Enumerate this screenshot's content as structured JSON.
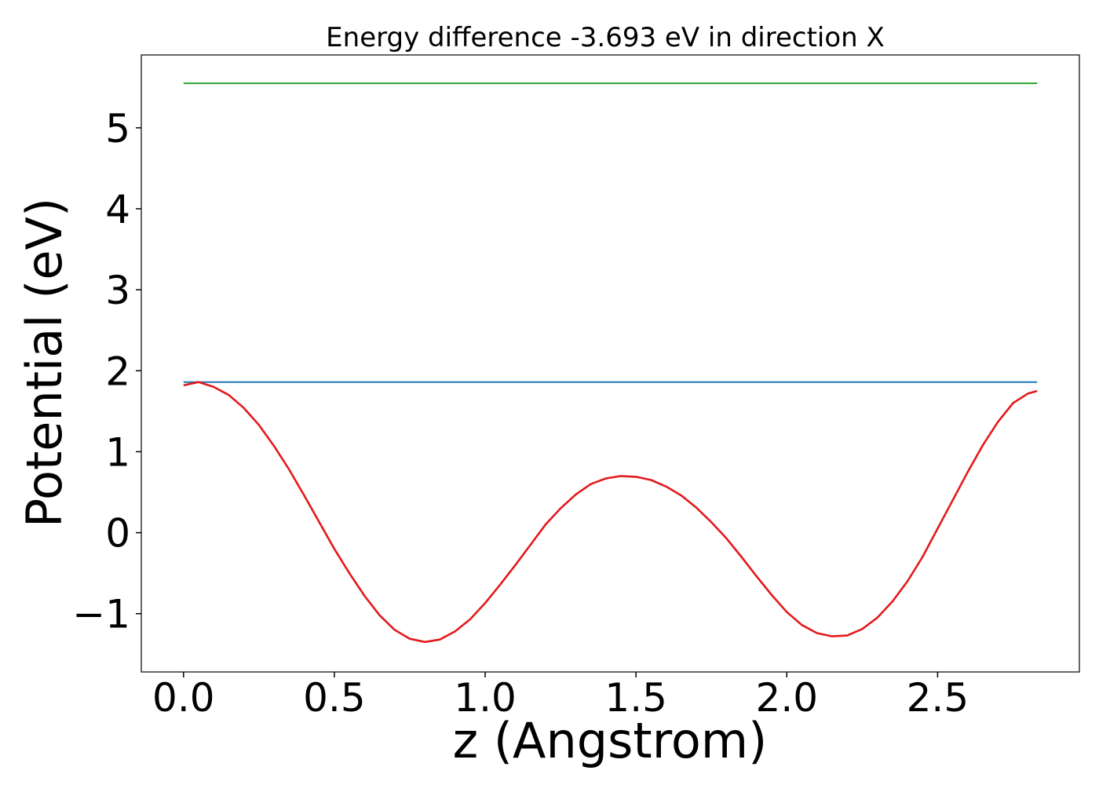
{
  "chart_data": {
    "type": "line",
    "title": "Energy difference -3.693 eV in direction X",
    "xlabel": "z (Angstrom)",
    "ylabel": "Potential (eV)",
    "xlim": [
      -0.14,
      2.97
    ],
    "ylim": [
      -1.72,
      5.9
    ],
    "xticks": [
      0.0,
      0.5,
      1.0,
      1.5,
      2.0,
      2.5
    ],
    "xtick_labels": [
      "0.0",
      "0.5",
      "1.0",
      "1.5",
      "2.0",
      "2.5"
    ],
    "yticks": [
      -1,
      0,
      1,
      2,
      3,
      4,
      5
    ],
    "ytick_labels": [
      "−1",
      "0",
      "1",
      "2",
      "3",
      "4",
      "5"
    ],
    "grid": false,
    "series": [
      {
        "color": "#2ca02c",
        "x": [
          0.0,
          2.83
        ],
        "y": [
          5.55,
          5.55
        ]
      },
      {
        "color": "#1f77b4",
        "x": [
          0.0,
          2.83
        ],
        "y": [
          1.86,
          1.86
        ]
      },
      {
        "color": "#e31a1c",
        "x": [
          0.0,
          0.05,
          0.1,
          0.15,
          0.2,
          0.25,
          0.3,
          0.35,
          0.4,
          0.45,
          0.5,
          0.55,
          0.6,
          0.65,
          0.7,
          0.75,
          0.8,
          0.85,
          0.9,
          0.95,
          1.0,
          1.05,
          1.1,
          1.15,
          1.2,
          1.25,
          1.3,
          1.35,
          1.4,
          1.45,
          1.5,
          1.55,
          1.6,
          1.65,
          1.7,
          1.75,
          1.8,
          1.85,
          1.9,
          1.95,
          2.0,
          2.05,
          2.1,
          2.15,
          2.2,
          2.25,
          2.3,
          2.35,
          2.4,
          2.45,
          2.5,
          2.55,
          2.6,
          2.65,
          2.7,
          2.75,
          2.8,
          2.83
        ],
        "y": [
          1.82,
          1.86,
          1.8,
          1.7,
          1.54,
          1.33,
          1.07,
          0.78,
          0.46,
          0.13,
          -0.2,
          -0.5,
          -0.78,
          -1.02,
          -1.2,
          -1.31,
          -1.35,
          -1.32,
          -1.22,
          -1.07,
          -0.87,
          -0.64,
          -0.4,
          -0.15,
          0.1,
          0.3,
          0.47,
          0.6,
          0.67,
          0.7,
          0.69,
          0.65,
          0.57,
          0.46,
          0.31,
          0.13,
          -0.07,
          -0.3,
          -0.54,
          -0.77,
          -0.98,
          -1.14,
          -1.24,
          -1.28,
          -1.27,
          -1.19,
          -1.05,
          -0.85,
          -0.6,
          -0.3,
          0.05,
          0.4,
          0.75,
          1.08,
          1.37,
          1.6,
          1.72,
          1.75
        ]
      }
    ]
  }
}
